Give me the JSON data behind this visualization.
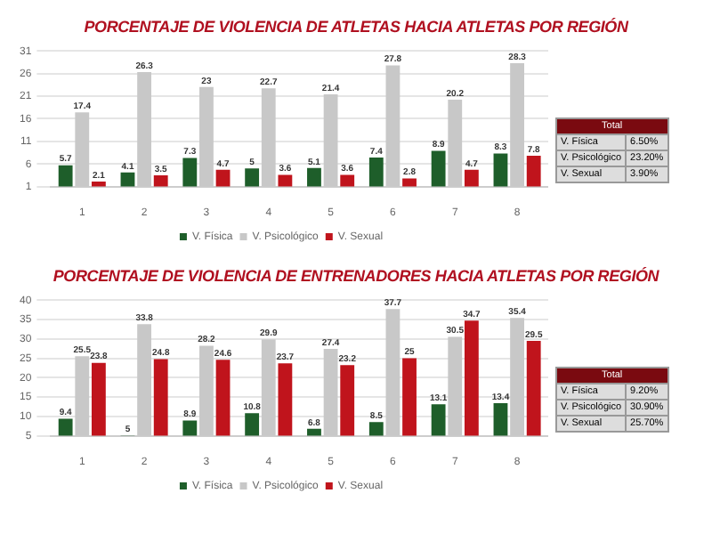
{
  "chart_data": [
    {
      "type": "bar",
      "title": "PORCENTAJE DE VIOLENCIA DE ATLETAS HACIA ATLETAS POR REGIÓN",
      "categories": [
        "1",
        "2",
        "3",
        "4",
        "5",
        "6",
        "7",
        "8"
      ],
      "series": [
        {
          "name": "V. Física",
          "color": "#1e5e2a",
          "values": [
            5.7,
            4.1,
            7.3,
            5.0,
            5.1,
            7.4,
            8.9,
            8.3
          ]
        },
        {
          "name": "V. Psicológico",
          "color": "#c8c8c8",
          "values": [
            17.4,
            26.3,
            23,
            22.7,
            21.4,
            27.8,
            20.2,
            28.3
          ]
        },
        {
          "name": "V. Sexual",
          "color": "#c0141c",
          "values": [
            2.1,
            3.5,
            4.7,
            3.6,
            3.6,
            2.8,
            4.7,
            7.8
          ]
        }
      ],
      "ylim": [
        1,
        31
      ],
      "yticks": [
        1,
        6,
        11,
        16,
        21,
        26,
        31
      ],
      "grid": "y",
      "legend": "bottom",
      "data_labels": true,
      "annotations": [
        "Total",
        "V. Física",
        "6.50%",
        "V. Psicológico",
        "23.20%",
        "V. Sexual",
        "3.90%"
      ]
    },
    {
      "type": "bar",
      "title": "PORCENTAJE DE VIOLENCIA DE ENTRENADORES HACIA ATLETAS POR REGIÓN",
      "categories": [
        "1",
        "2",
        "3",
        "4",
        "5",
        "6",
        "7",
        "8"
      ],
      "series": [
        {
          "name": "V. Física",
          "color": "#1e5e2a",
          "values": [
            9.4,
            5,
            8.9,
            10.8,
            6.8,
            8.5,
            13.1,
            13.4
          ]
        },
        {
          "name": "V. Psicológico",
          "color": "#c8c8c8",
          "values": [
            25.5,
            33.8,
            28.2,
            29.9,
            27.4,
            37.7,
            30.5,
            35.4
          ]
        },
        {
          "name": "V. Sexual",
          "color": "#c0141c",
          "values": [
            23.8,
            24.8,
            24.6,
            23.7,
            23.2,
            25,
            34.7,
            29.5
          ]
        }
      ],
      "ylim": [
        5,
        40
      ],
      "yticks": [
        5,
        10,
        15,
        20,
        25,
        30,
        35,
        40
      ],
      "grid": "y",
      "legend": "bottom",
      "data_labels": true,
      "annotations": [
        "Total",
        "V. Física",
        "9.20%",
        "V. Psicológico",
        "30.90%",
        "V. Sexual",
        "25.70%"
      ]
    }
  ]
}
